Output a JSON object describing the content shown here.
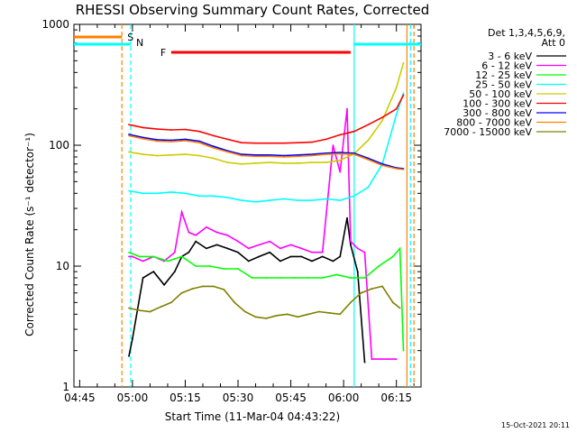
{
  "chart_data": {
    "type": "line",
    "title": "RHESSI Observing Summary Count Rates, Corrected",
    "xlabel": "Start Time (11-Mar-04 04:43:22)",
    "ylabel": "Corrected Count Rate (s⁻¹ detector⁻¹)",
    "y_scale": "log",
    "ylim": [
      1,
      1000
    ],
    "xlim": [
      "04:43:22",
      "06:22"
    ],
    "x_tick_labels": [
      "04:45",
      "05:00",
      "05:15",
      "05:30",
      "05:45",
      "06:00",
      "06:15"
    ],
    "y_tick_labels": [
      "1",
      "10",
      "100",
      "1000"
    ],
    "legend": {
      "position": "top-right",
      "header": [
        "Det 1,3,4,5,6,9,",
        "Att 0"
      ]
    },
    "series": [
      {
        "name": "3 - 6 keV",
        "color": "#000000",
        "x": [
          "04:59",
          "05:00",
          "05:03",
          "05:06",
          "05:09",
          "05:12",
          "05:14",
          "05:16",
          "05:18",
          "05:21",
          "05:24",
          "05:27",
          "05:30",
          "05:33",
          "05:36",
          "05:39",
          "05:42",
          "05:45",
          "05:48",
          "05:51",
          "05:54",
          "05:57",
          "05:59",
          "06:01",
          "06:02",
          "06:04",
          "06:06"
        ],
        "values": [
          1.8,
          2.5,
          8,
          9,
          7,
          9,
          12,
          13,
          16,
          14,
          15,
          14,
          13,
          11,
          12,
          13,
          11,
          12,
          12,
          11,
          12,
          11,
          12,
          25,
          15,
          9,
          1.6
        ]
      },
      {
        "name": "6 - 12 keV",
        "color": "#ff00ff",
        "x": [
          "04:59",
          "05:00",
          "05:03",
          "05:06",
          "05:09",
          "05:12",
          "05:14",
          "05:16",
          "05:18",
          "05:21",
          "05:24",
          "05:27",
          "05:30",
          "05:33",
          "05:36",
          "05:39",
          "05:42",
          "05:45",
          "05:48",
          "05:51",
          "05:54",
          "05:57",
          "05:59",
          "06:01",
          "06:02",
          "06:04",
          "06:06",
          "06:08",
          "06:15"
        ],
        "values": [
          12,
          12,
          11,
          12,
          11,
          13,
          28,
          19,
          18,
          21,
          19,
          18,
          16,
          14,
          15,
          16,
          14,
          15,
          14,
          13,
          13,
          100,
          60,
          200,
          16,
          14,
          13,
          1.7,
          1.7
        ]
      },
      {
        "name": "12 - 25 keV",
        "color": "#00ff00",
        "x": [
          "04:59",
          "05:02",
          "05:06",
          "05:10",
          "05:14",
          "05:18",
          "05:22",
          "05:26",
          "05:30",
          "05:34",
          "05:38",
          "05:42",
          "05:46",
          "05:50",
          "05:54",
          "05:58",
          "06:02",
          "06:06",
          "06:10",
          "06:14",
          "06:16",
          "06:17"
        ],
        "values": [
          13,
          12,
          12,
          11,
          12,
          10,
          10,
          9.5,
          9.5,
          8,
          8,
          8,
          8,
          8,
          8,
          8.5,
          8,
          8,
          10,
          12,
          14,
          2
        ]
      },
      {
        "name": "25 - 50 keV",
        "color": "#00ffff",
        "x": [
          "04:59",
          "05:03",
          "05:07",
          "05:11",
          "05:15",
          "05:19",
          "05:23",
          "05:27",
          "05:31",
          "05:35",
          "05:39",
          "05:43",
          "05:47",
          "05:51",
          "05:55",
          "05:59",
          "06:03",
          "06:07",
          "06:11",
          "06:15",
          "06:17"
        ],
        "values": [
          42,
          40,
          40,
          41,
          40,
          38,
          38,
          37,
          35,
          34,
          35,
          36,
          35,
          35,
          36,
          35,
          38,
          45,
          70,
          180,
          270
        ]
      },
      {
        "name": "50 - 100 keV",
        "color": "#cccc00",
        "x": [
          "04:59",
          "05:03",
          "05:07",
          "05:11",
          "05:15",
          "05:19",
          "05:23",
          "05:27",
          "05:31",
          "05:35",
          "05:39",
          "05:43",
          "05:47",
          "05:51",
          "05:55",
          "05:59",
          "06:03",
          "06:07",
          "06:11",
          "06:15",
          "06:17"
        ],
        "values": [
          88,
          84,
          82,
          83,
          84,
          82,
          78,
          72,
          70,
          71,
          72,
          71,
          71,
          72,
          72,
          75,
          85,
          110,
          160,
          300,
          480
        ]
      },
      {
        "name": "100 - 300 keV",
        "color": "#ff0000",
        "x": [
          "04:59",
          "05:03",
          "05:07",
          "05:11",
          "05:15",
          "05:19",
          "05:23",
          "05:27",
          "05:31",
          "05:35",
          "05:39",
          "05:43",
          "05:47",
          "05:51",
          "05:55",
          "05:59",
          "06:03",
          "06:07",
          "06:11",
          "06:15",
          "06:17"
        ],
        "values": [
          148,
          140,
          136,
          134,
          135,
          130,
          120,
          112,
          105,
          104,
          104,
          104,
          105,
          106,
          112,
          122,
          130,
          148,
          170,
          200,
          260
        ]
      },
      {
        "name": "300 - 800 keV",
        "color": "#0000ff",
        "x": [
          "04:59",
          "05:03",
          "05:07",
          "05:11",
          "05:15",
          "05:19",
          "05:23",
          "05:27",
          "05:31",
          "05:35",
          "05:39",
          "05:43",
          "05:47",
          "05:51",
          "05:55",
          "05:59",
          "06:03",
          "06:07",
          "06:11",
          "06:15",
          "06:17"
        ],
        "values": [
          123,
          116,
          111,
          110,
          112,
          108,
          98,
          90,
          84,
          83,
          83,
          82,
          83,
          84,
          86,
          87,
          86,
          78,
          70,
          65,
          64
        ]
      },
      {
        "name": "800 - 7000 keV",
        "color": "#ff8000",
        "x": [
          "04:59",
          "05:03",
          "05:07",
          "05:11",
          "05:15",
          "05:19",
          "05:23",
          "05:27",
          "05:31",
          "05:35",
          "05:39",
          "05:43",
          "05:47",
          "05:51",
          "05:55",
          "05:59",
          "06:03",
          "06:07",
          "06:11",
          "06:15",
          "06:17"
        ],
        "values": [
          120,
          113,
          108,
          107,
          109,
          105,
          95,
          88,
          82,
          81,
          81,
          80,
          81,
          82,
          84,
          85,
          84,
          76,
          68,
          64,
          63
        ]
      },
      {
        "name": "7000 - 15000 keV",
        "color": "#808000",
        "x": [
          "04:59",
          "05:02",
          "05:05",
          "05:08",
          "05:11",
          "05:14",
          "05:17",
          "05:20",
          "05:23",
          "05:26",
          "05:29",
          "05:32",
          "05:35",
          "05:38",
          "05:41",
          "05:44",
          "05:47",
          "05:50",
          "05:53",
          "05:56",
          "05:59",
          "06:02",
          "06:05",
          "06:08",
          "06:11",
          "06:14",
          "06:16"
        ],
        "values": [
          4.5,
          4.3,
          4.2,
          4.6,
          5,
          6,
          6.5,
          6.8,
          6.8,
          6.4,
          5,
          4.2,
          3.8,
          3.7,
          3.9,
          4,
          3.8,
          4,
          4.2,
          4.1,
          4,
          5,
          6,
          6.5,
          6.8,
          5,
          4.5
        ]
      }
    ],
    "annotations": [
      {
        "label": "S",
        "color": "#ff8000",
        "x_start": "04:43:22",
        "x_end": "04:57"
      },
      {
        "label": "N",
        "color": "#00ffff",
        "x_start": "04:43:22",
        "x_end": "04:59:30"
      },
      {
        "label": "F",
        "color": "#ff0000",
        "x_start": "05:11",
        "x_end": "06:02"
      },
      {
        "label": "",
        "color": "#00ffff",
        "x_start": "06:03",
        "x_end": "06:22"
      }
    ],
    "vertical_markers": [
      {
        "x": "04:57",
        "color": "#ff8000",
        "style": "dashed"
      },
      {
        "x": "04:59:30",
        "color": "#00ffff",
        "style": "dashed"
      },
      {
        "x": "06:03",
        "color": "#00ffff",
        "style": "solid"
      },
      {
        "x": "06:18",
        "color": "#ff8000",
        "style": "solid"
      },
      {
        "x": "06:19",
        "color": "#00ffff",
        "style": "dashed"
      },
      {
        "x": "06:20",
        "color": "#ff8000",
        "style": "dashed"
      }
    ]
  },
  "footer": {
    "date_stamp": "15-Oct-2021 20:11"
  }
}
